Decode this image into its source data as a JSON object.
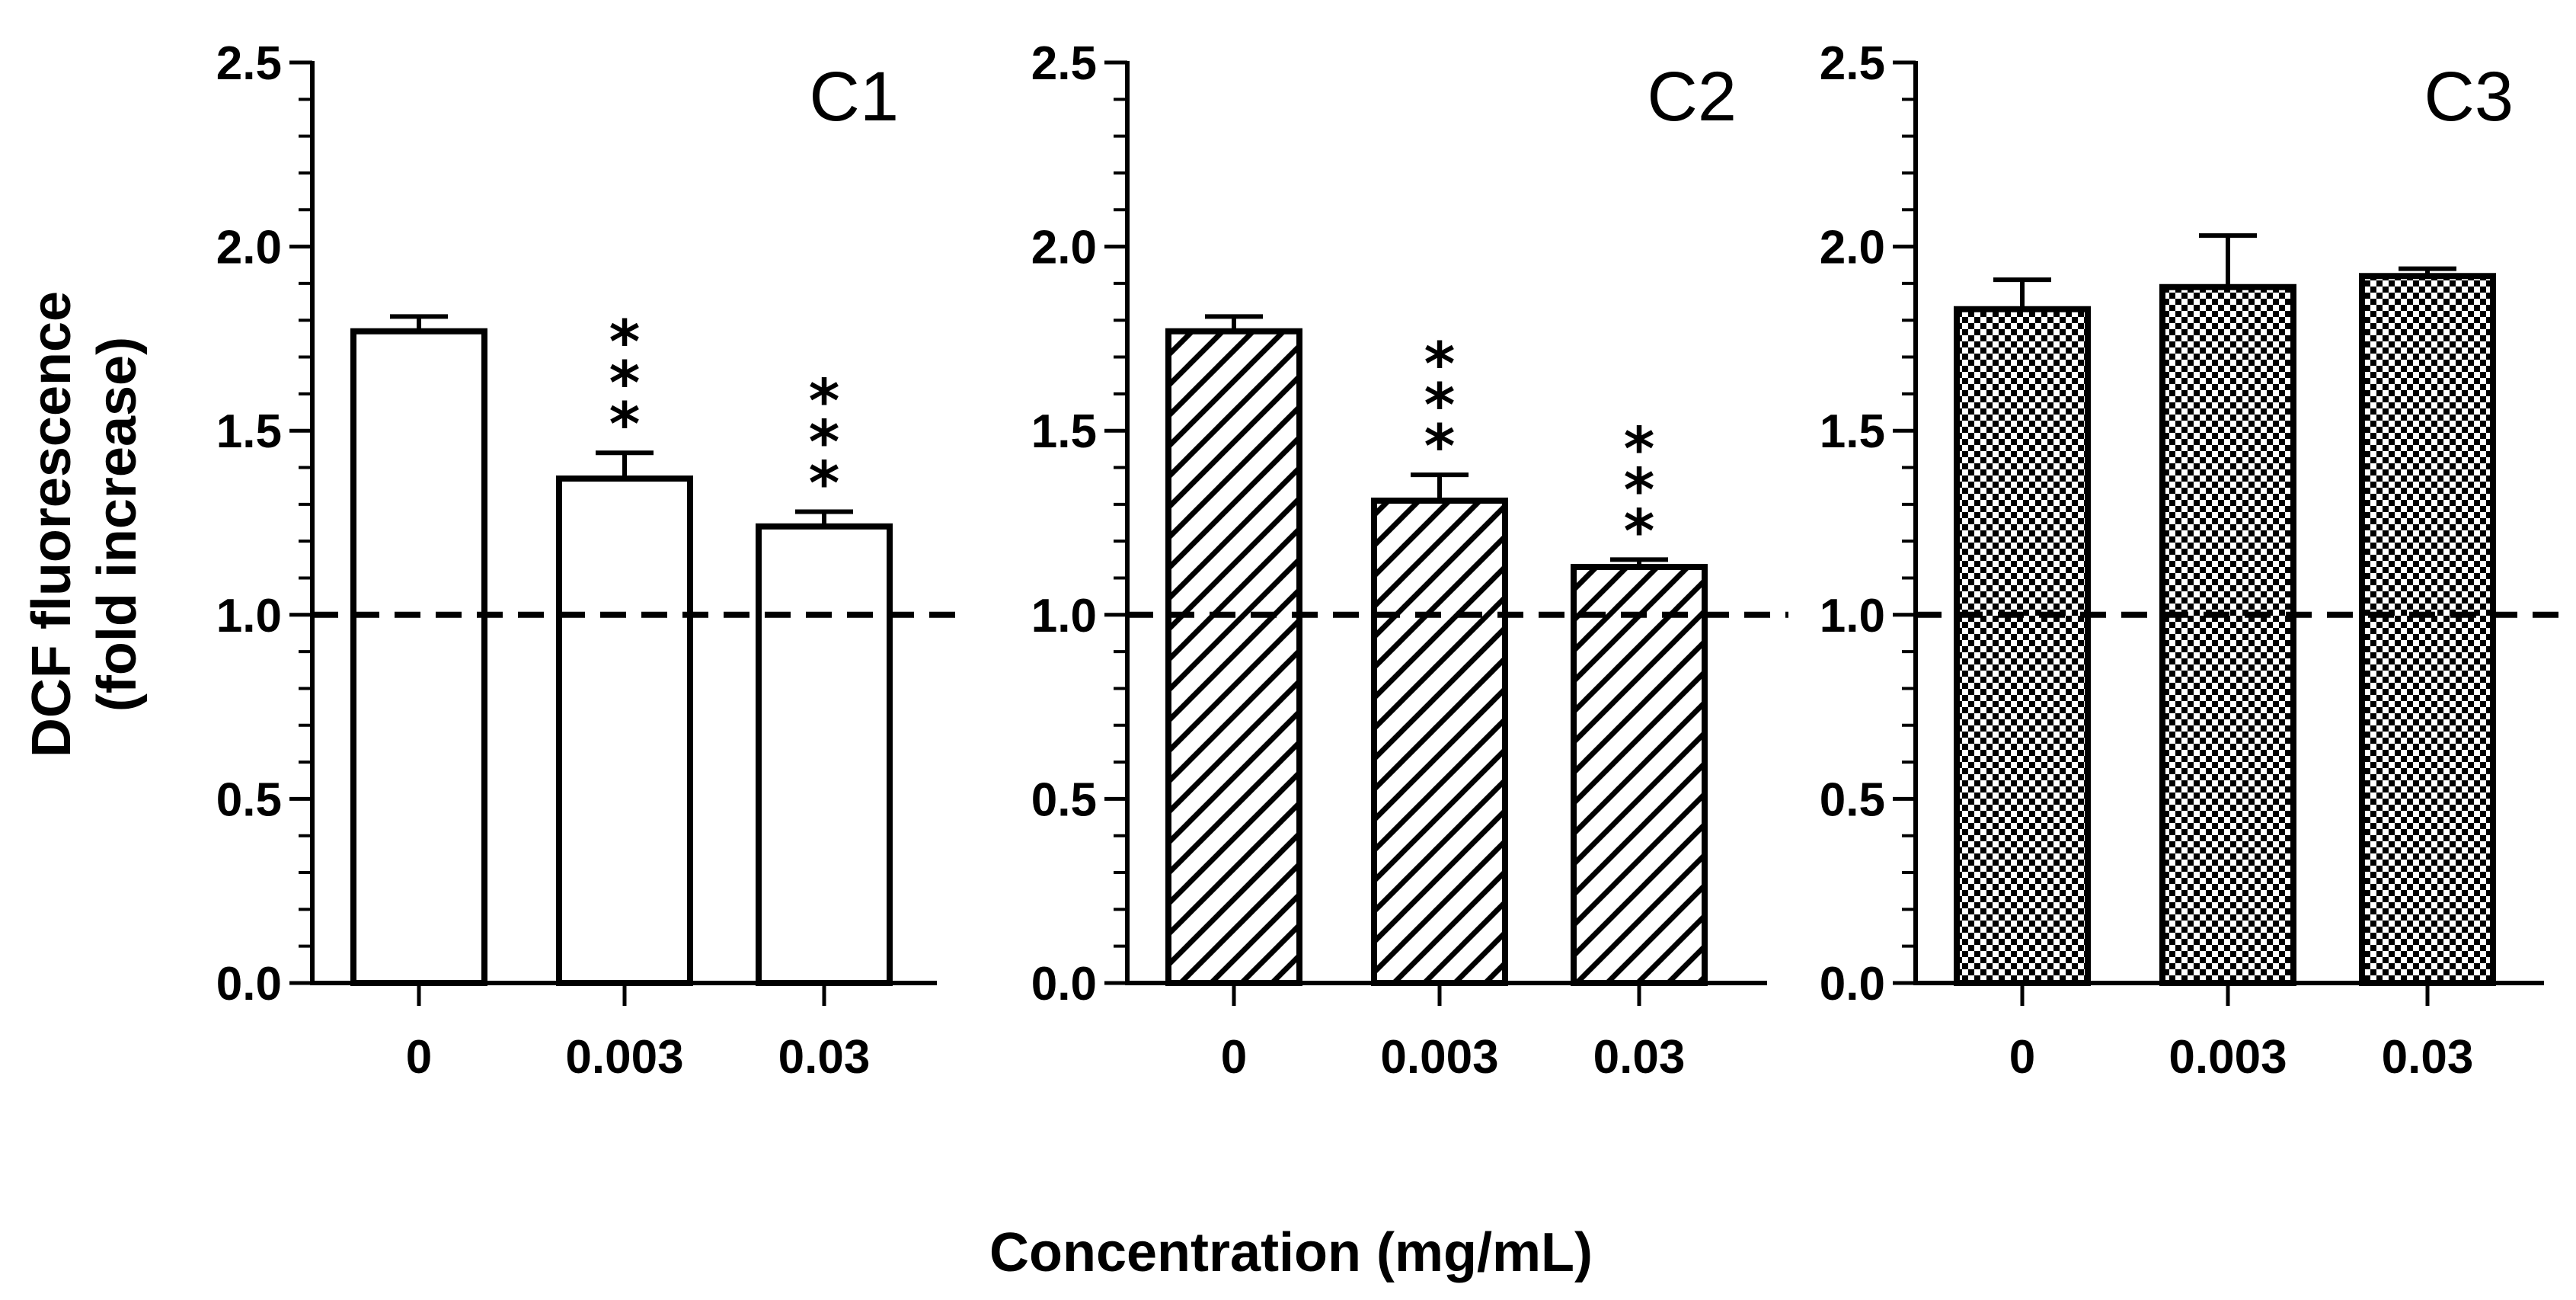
{
  "chart_data": [
    {
      "type": "bar",
      "title": "C1",
      "pattern": "none",
      "categories": [
        "0",
        "0.003",
        "0.03"
      ],
      "values": [
        1.77,
        1.37,
        1.24
      ],
      "errors": [
        0.04,
        0.07,
        0.04
      ],
      "significance": [
        "",
        "***",
        "***"
      ],
      "ylim": [
        0,
        2.5
      ],
      "yticks": [
        "0.0",
        "0.5",
        "1.0",
        "1.5",
        "2.0",
        "2.5"
      ],
      "reference_line": 1.0
    },
    {
      "type": "bar",
      "title": "C2",
      "pattern": "diagonal-hatch",
      "categories": [
        "0",
        "0.003",
        "0.03"
      ],
      "values": [
        1.77,
        1.31,
        1.13
      ],
      "errors": [
        0.04,
        0.07,
        0.02
      ],
      "significance": [
        "",
        "***",
        "***"
      ],
      "ylim": [
        0,
        2.5
      ],
      "yticks": [
        "0.0",
        "0.5",
        "1.0",
        "1.5",
        "2.0",
        "2.5"
      ],
      "reference_line": 1.0
    },
    {
      "type": "bar",
      "title": "C3",
      "pattern": "checker",
      "categories": [
        "0",
        "0.003",
        "0.03"
      ],
      "values": [
        1.83,
        1.89,
        1.92
      ],
      "errors": [
        0.08,
        0.14,
        0.02
      ],
      "significance": [
        "",
        "",
        ""
      ],
      "ylim": [
        0,
        2.5
      ],
      "yticks": [
        "0.0",
        "0.5",
        "1.0",
        "1.5",
        "2.0",
        "2.5"
      ],
      "reference_line": 1.0
    }
  ],
  "ylabel_line1": "DCF fluorescence",
  "ylabel_line2": "(fold increase)",
  "xlabel": "Concentration (mg/mL)"
}
